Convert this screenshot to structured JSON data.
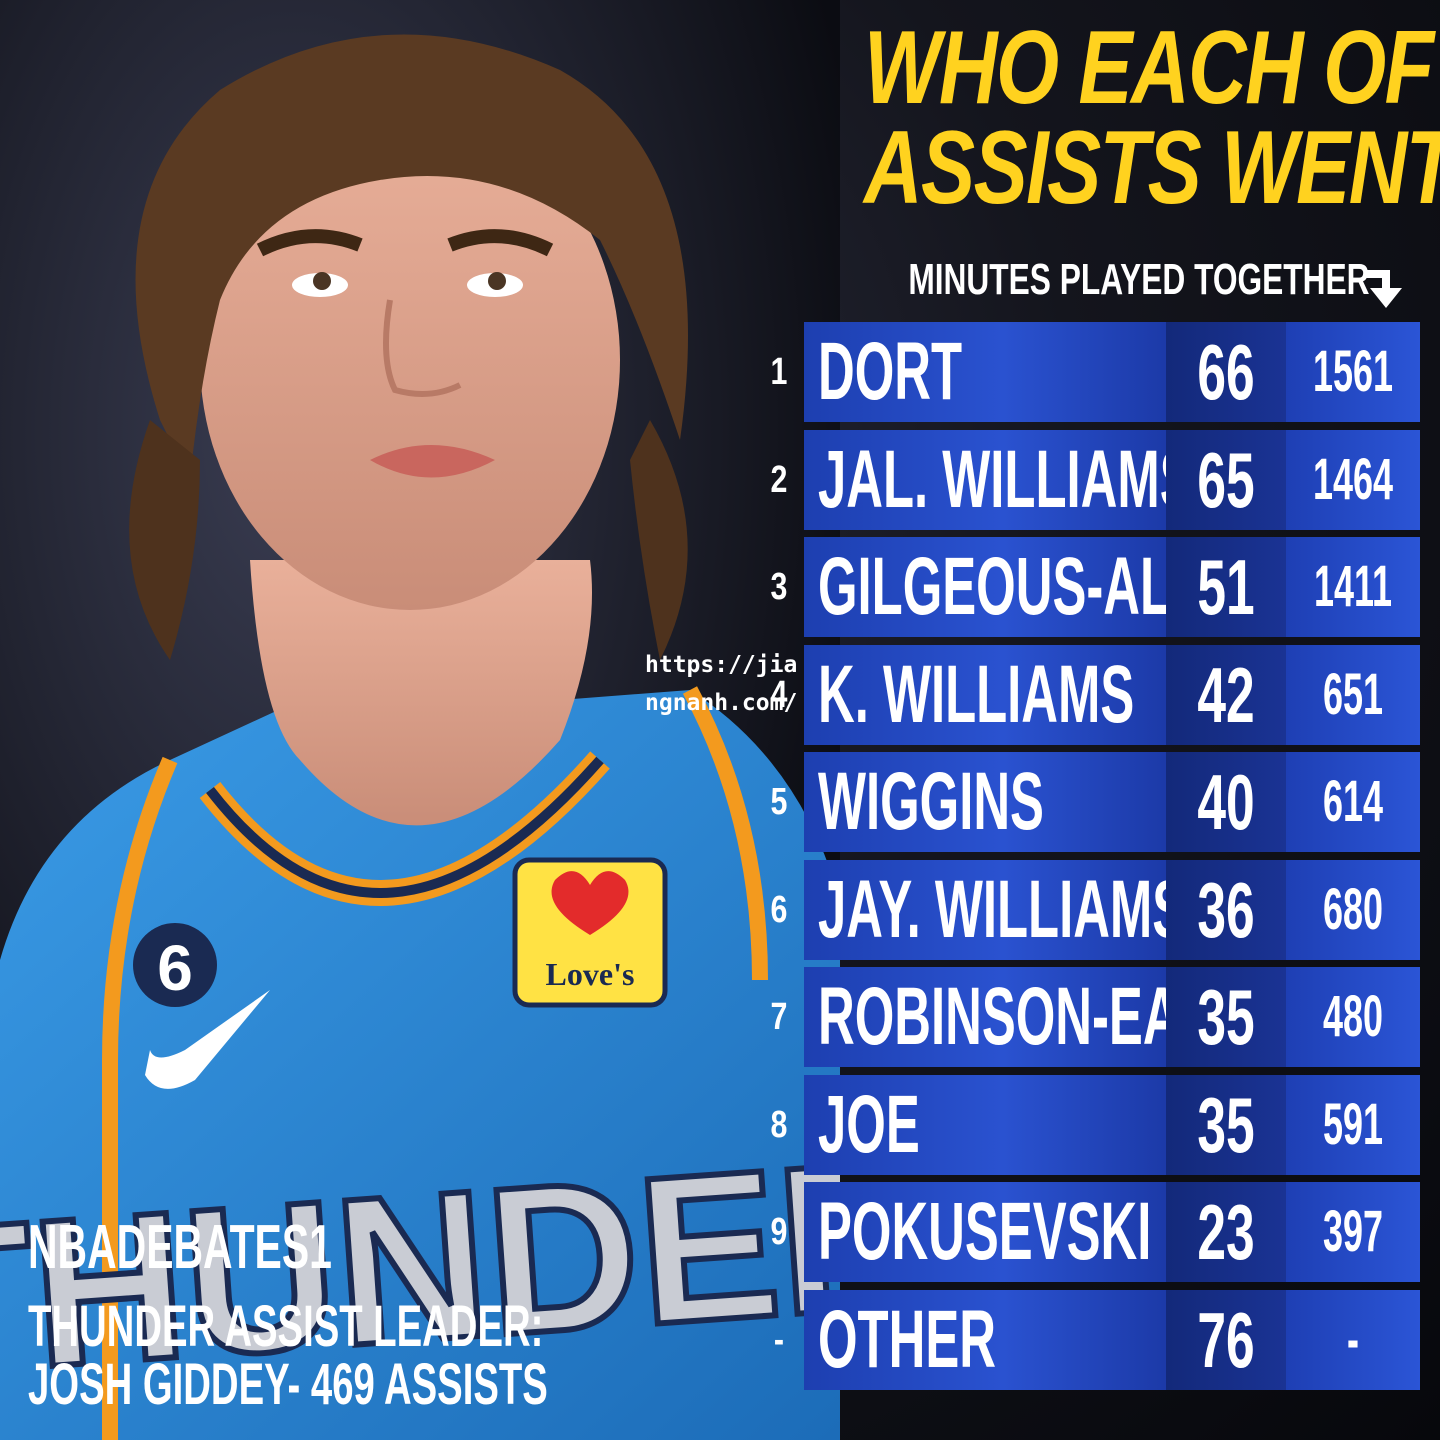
{
  "title": {
    "line1": "WHO EACH OF HIS",
    "line2": "ASSISTS WENT TO"
  },
  "column_header": "MINUTES PLAYED TOGETHER",
  "header_icon": "arrow-down-right-icon",
  "rows": [
    {
      "rank": "1",
      "name": "DORT",
      "assists": "66",
      "minutes": "1561"
    },
    {
      "rank": "2",
      "name": "JAL. WILLIAMS",
      "assists": "65",
      "minutes": "1464"
    },
    {
      "rank": "3",
      "name": "GILGEOUS-AL.",
      "assists": "51",
      "minutes": "1411"
    },
    {
      "rank": "4",
      "name": "K. WILLIAMS",
      "assists": "42",
      "minutes": "651"
    },
    {
      "rank": "5",
      "name": "WIGGINS",
      "assists": "40",
      "minutes": "614"
    },
    {
      "rank": "6",
      "name": "JAY. WILLIAMS",
      "assists": "36",
      "minutes": "680"
    },
    {
      "rank": "7",
      "name": "ROBINSON-EA.",
      "assists": "35",
      "minutes": "480"
    },
    {
      "rank": "8",
      "name": "JOE",
      "assists": "35",
      "minutes": "591"
    },
    {
      "rank": "9",
      "name": "POKUSEVSKI",
      "assists": "23",
      "minutes": "397"
    },
    {
      "rank": "-",
      "name": "OTHER",
      "assists": "76",
      "minutes": "-"
    }
  ],
  "watermark": "https://jiangnanh.com/",
  "source": "NBADEBATES1",
  "caption": {
    "line1": "THUNDER ASSIST LEADER:",
    "line2": "JOSH GIDDEY- 469 ASSISTS"
  },
  "jersey": {
    "number": "6",
    "sponsor": "Love's",
    "team_text": "THUNDER"
  },
  "colors": {
    "title_yellow": "#ffd21f",
    "row_blue": "#2a52d0",
    "row_dark_blue": "#13297a",
    "jersey_blue": "#2f8fd8"
  }
}
